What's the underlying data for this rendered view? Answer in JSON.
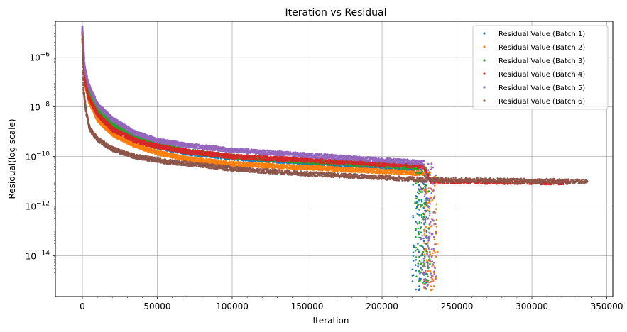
{
  "chart_data": {
    "type": "scatter",
    "title": "Iteration vs Residual",
    "xlabel": "Iteration",
    "ylabel": "Residual(log scale)",
    "xlim": [
      -18000,
      354000
    ],
    "ylim_log10": [
      -15.65,
      -4.55
    ],
    "yscale": "log",
    "grid": true,
    "legend_placement": "top-right",
    "x_ticks": [
      {
        "value": 0,
        "label": "0"
      },
      {
        "value": 50000,
        "label": "50000"
      },
      {
        "value": 100000,
        "label": "100000"
      },
      {
        "value": 150000,
        "label": "150000"
      },
      {
        "value": 200000,
        "label": "200000"
      },
      {
        "value": 250000,
        "label": "250000"
      },
      {
        "value": 300000,
        "label": "300000"
      },
      {
        "value": 350000,
        "label": "350000"
      }
    ],
    "y_ticks": [
      {
        "exp": -6,
        "base": "10",
        "sup": "−6"
      },
      {
        "exp": -8,
        "base": "10",
        "sup": "−8"
      },
      {
        "exp": -10,
        "base": "10",
        "sup": "−10"
      },
      {
        "exp": -12,
        "base": "10",
        "sup": "−12"
      },
      {
        "exp": -14,
        "base": "10",
        "sup": "−14"
      }
    ],
    "series": [
      {
        "name": "Residual Value (Batch 1)",
        "color": "#1f77b4",
        "curve": [
          [
            0,
            -5.0
          ],
          [
            1500,
            -6.8
          ],
          [
            4000,
            -7.5
          ],
          [
            10000,
            -8.2
          ],
          [
            20000,
            -8.8
          ],
          [
            35000,
            -9.3
          ],
          [
            50000,
            -9.6
          ],
          [
            70000,
            -9.85
          ],
          [
            100000,
            -10.05
          ],
          [
            150000,
            -10.25
          ],
          [
            200000,
            -10.4
          ],
          [
            222000,
            -10.5
          ]
        ],
        "drop": {
          "x_range": [
            220000,
            230000
          ],
          "y_min_log": -15.5
        }
      },
      {
        "name": "Residual Value (Batch 2)",
        "color": "#ff7f0e",
        "curve": [
          [
            0,
            -5.3
          ],
          [
            1500,
            -7.0
          ],
          [
            4000,
            -7.7
          ],
          [
            10000,
            -8.5
          ],
          [
            20000,
            -9.1
          ],
          [
            35000,
            -9.55
          ],
          [
            50000,
            -9.85
          ],
          [
            70000,
            -10.1
          ],
          [
            100000,
            -10.3
          ],
          [
            150000,
            -10.45
          ],
          [
            200000,
            -10.6
          ],
          [
            232000,
            -10.7
          ]
        ],
        "drop": {
          "x_range": [
            228000,
            237000
          ],
          "y_min_log": -15.4
        }
      },
      {
        "name": "Residual Value (Batch 3)",
        "color": "#2ca02c",
        "curve": [
          [
            0,
            -5.0
          ],
          [
            1500,
            -6.7
          ],
          [
            4000,
            -7.4
          ],
          [
            10000,
            -8.1
          ],
          [
            20000,
            -8.7
          ],
          [
            35000,
            -9.2
          ],
          [
            50000,
            -9.5
          ],
          [
            70000,
            -9.8
          ],
          [
            100000,
            -10.0
          ],
          [
            150000,
            -10.2
          ],
          [
            200000,
            -10.35
          ],
          [
            225000,
            -10.45
          ]
        ],
        "drop": {
          "x_range": [
            222000,
            232000
          ],
          "y_min_log": -15.2
        }
      },
      {
        "name": "Residual Value (Batch 4)",
        "color": "#d62728",
        "curve": [
          [
            0,
            -5.0
          ],
          [
            1500,
            -6.9
          ],
          [
            4000,
            -7.6
          ],
          [
            10000,
            -8.3
          ],
          [
            20000,
            -8.9
          ],
          [
            35000,
            -9.35
          ],
          [
            50000,
            -9.6
          ],
          [
            70000,
            -9.8
          ],
          [
            100000,
            -10.0
          ],
          [
            150000,
            -10.15
          ],
          [
            200000,
            -10.3
          ],
          [
            228000,
            -10.4
          ],
          [
            232000,
            -11.0
          ],
          [
            325000,
            -11.05
          ]
        ],
        "drop": null
      },
      {
        "name": "Residual Value (Batch 5)",
        "color": "#9467bd",
        "curve": [
          [
            0,
            -4.8
          ],
          [
            1500,
            -6.4
          ],
          [
            4000,
            -7.1
          ],
          [
            10000,
            -7.9
          ],
          [
            20000,
            -8.5
          ],
          [
            35000,
            -9.05
          ],
          [
            50000,
            -9.35
          ],
          [
            70000,
            -9.55
          ],
          [
            100000,
            -9.75
          ],
          [
            150000,
            -9.95
          ],
          [
            200000,
            -10.15
          ],
          [
            228000,
            -10.25
          ]
        ],
        "drop": {
          "x_range": [
            226000,
            236000
          ],
          "y_min_log": -15.4
        }
      },
      {
        "name": "Residual Value (Batch 6)",
        "color": "#8c564b",
        "curve": [
          [
            0,
            -5.2
          ],
          [
            800,
            -7.3
          ],
          [
            2500,
            -8.2
          ],
          [
            5000,
            -8.9
          ],
          [
            10000,
            -9.3
          ],
          [
            20000,
            -9.7
          ],
          [
            35000,
            -10.0
          ],
          [
            55000,
            -10.2
          ],
          [
            80000,
            -10.35
          ],
          [
            100000,
            -10.5
          ],
          [
            150000,
            -10.7
          ],
          [
            200000,
            -10.85
          ],
          [
            232000,
            -10.95
          ],
          [
            337000,
            -11.0
          ]
        ],
        "drop": null
      }
    ]
  }
}
